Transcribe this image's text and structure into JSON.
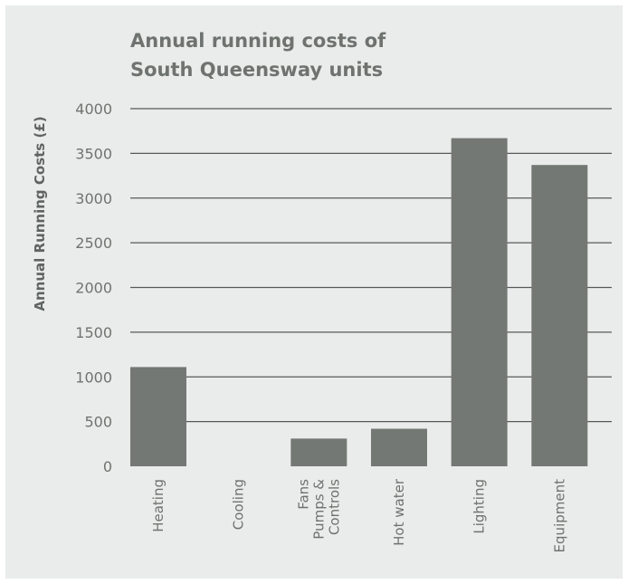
{
  "chart_data": {
    "type": "bar",
    "title_lines": [
      "Annual running costs of",
      "South Queensway units"
    ],
    "xlabel": "",
    "ylabel": "Annual Running Costs (£)",
    "ylim": [
      0,
      4000
    ],
    "yticks": [
      0,
      500,
      1000,
      1500,
      2000,
      2500,
      3000,
      3500,
      4000
    ],
    "grid": true,
    "categories": [
      [
        "Heating"
      ],
      [
        "Cooling"
      ],
      [
        "Fans",
        "Pumps &",
        "Controls"
      ],
      [
        "Hot water"
      ],
      [
        "Lighting"
      ],
      [
        "Equipment"
      ]
    ],
    "values": [
      1110,
      0,
      310,
      420,
      3670,
      3370
    ],
    "colors": {
      "bar": "#737875",
      "grid": "#555a58",
      "background": "#e9ecea"
    }
  }
}
